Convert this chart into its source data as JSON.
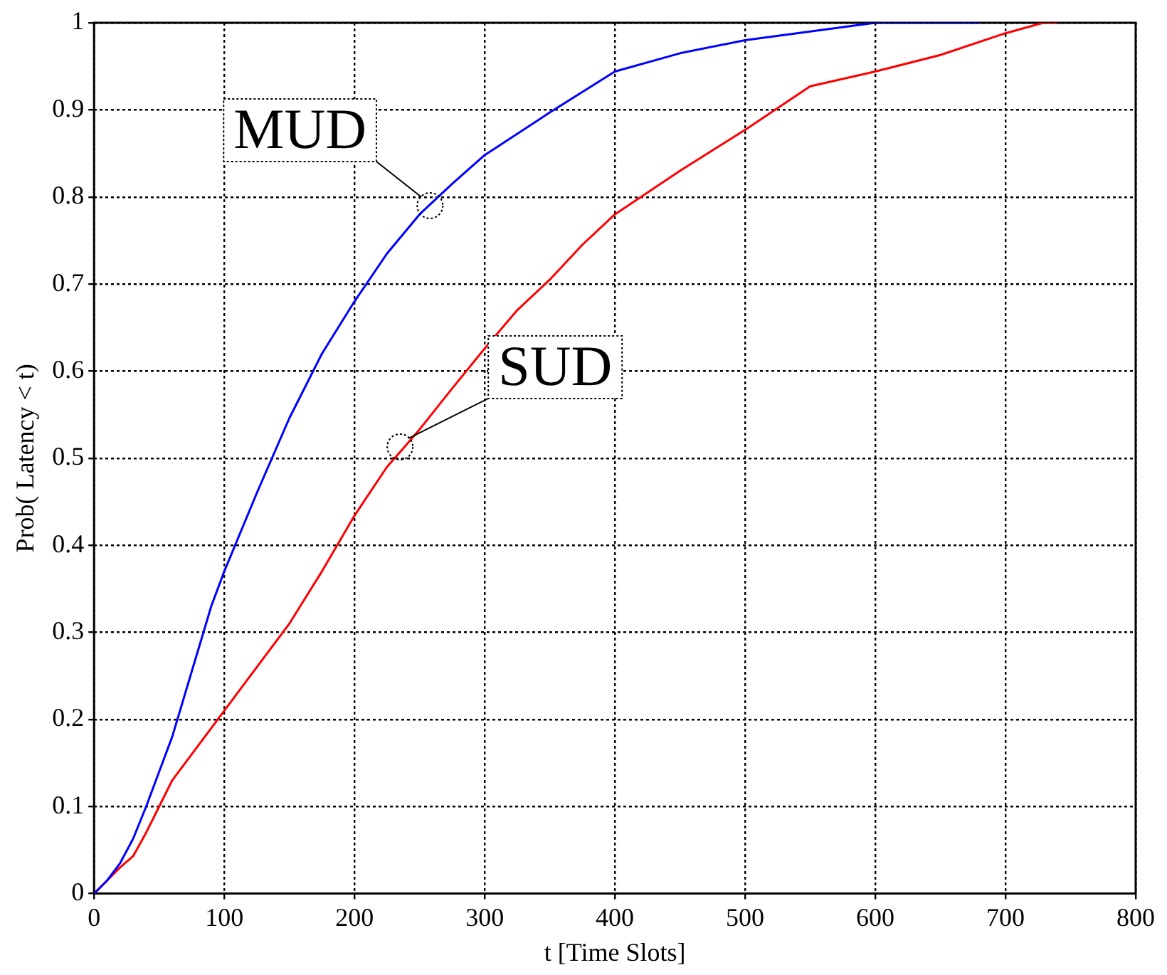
{
  "chart_data": {
    "type": "line",
    "xlabel": "t [Time Slots]",
    "ylabel": "Prob( Latency < t)",
    "xlim": [
      0,
      800
    ],
    "xticks": [
      0,
      100,
      200,
      300,
      400,
      500,
      600,
      700,
      800
    ],
    "ylim": [
      0,
      1
    ],
    "yticks": [
      0,
      0.1,
      0.2,
      0.3,
      0.4,
      0.5,
      0.6,
      0.7,
      0.8,
      0.9,
      1
    ],
    "grid": true,
    "legend": false,
    "marker": "none",
    "line_style": "solid",
    "series": [
      {
        "color": "#0000ff",
        "x": [
          0,
          10,
          20,
          30,
          40,
          50,
          60,
          70,
          80,
          90,
          100,
          125,
          150,
          175,
          200,
          225,
          250,
          275,
          300,
          350,
          400,
          450,
          500,
          550,
          600,
          650,
          680
        ],
        "values": [
          0,
          0.015,
          0.035,
          0.063,
          0.1,
          0.14,
          0.18,
          0.23,
          0.28,
          0.33,
          0.37,
          0.46,
          0.546,
          0.62,
          0.68,
          0.735,
          0.78,
          0.815,
          0.848,
          0.897,
          0.944,
          0.965,
          0.98,
          0.99,
          1,
          1,
          1
        ]
      },
      {
        "color": "#ff0000",
        "x": [
          0,
          10,
          20,
          30,
          40,
          50,
          60,
          75,
          100,
          125,
          150,
          175,
          200,
          225,
          235,
          250,
          275,
          300,
          325,
          350,
          375,
          400,
          420,
          450,
          500,
          550,
          600,
          650,
          700,
          729,
          740
        ],
        "values": [
          0,
          0.015,
          0.03,
          0.043,
          0.07,
          0.1,
          0.13,
          0.16,
          0.21,
          0.26,
          0.31,
          0.37,
          0.434,
          0.49,
          0.507,
          0.533,
          0.58,
          0.626,
          0.67,
          0.705,
          0.745,
          0.78,
          0.8,
          0.83,
          0.877,
          0.927,
          0.944,
          0.963,
          0.988,
          1,
          1
        ]
      }
    ],
    "annotations": [
      {
        "text": "MUD",
        "x": 258,
        "y": 0.79
      },
      {
        "text": "SUD",
        "x": 235,
        "y": 0.513
      }
    ]
  }
}
